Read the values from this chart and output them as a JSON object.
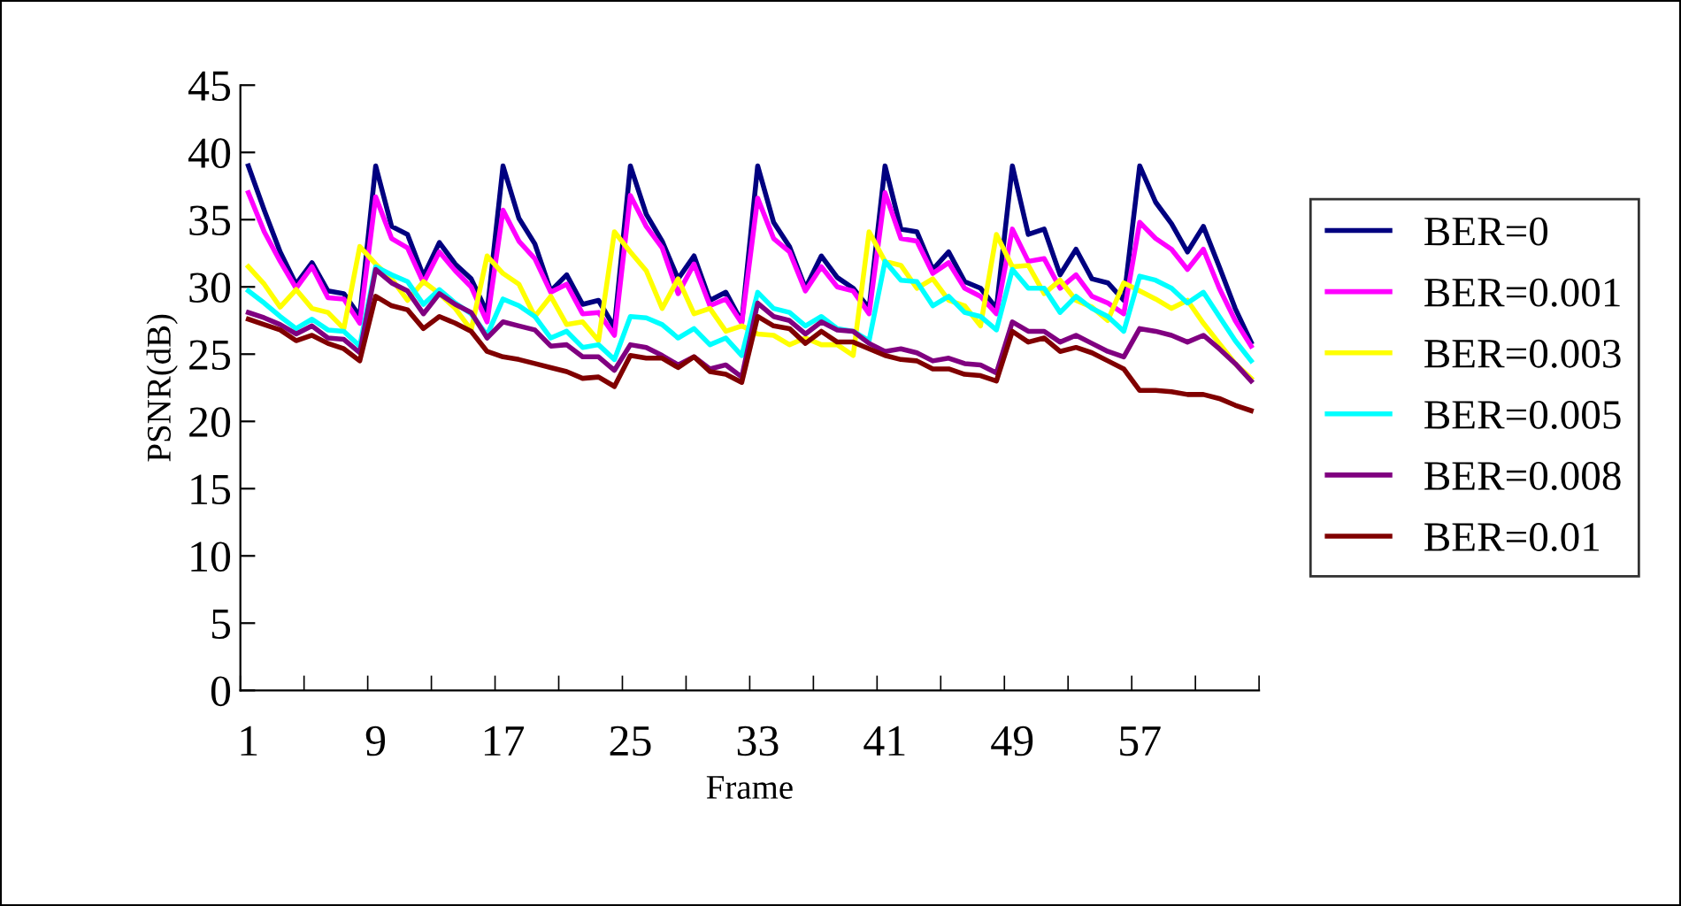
{
  "chart_data": {
    "type": "line",
    "xlabel": "Frame",
    "ylabel": "PSNR(dB)",
    "categories": [
      "1",
      null,
      null,
      null,
      null,
      null,
      null,
      null,
      "9",
      null,
      null,
      null,
      null,
      null,
      null,
      null,
      "17",
      null,
      null,
      null,
      null,
      null,
      null,
      null,
      "25",
      null,
      null,
      null,
      null,
      null,
      null,
      null,
      "33",
      null,
      null,
      null,
      null,
      null,
      null,
      null,
      "41",
      null,
      null,
      null,
      null,
      null,
      null,
      null,
      "49",
      null,
      null,
      null,
      null,
      null,
      null,
      null,
      "57",
      null,
      null,
      null,
      null,
      null,
      null,
      null
    ],
    "ylim": [
      0,
      45
    ],
    "yticks": [
      0,
      5,
      10,
      15,
      20,
      25,
      30,
      35,
      40,
      45
    ],
    "grid": false,
    "legend": "right",
    "marker": "none",
    "line_style": "solid",
    "series": [
      {
        "name": "BER=0",
        "color": "#000080",
        "values": [
          39.0,
          35.7,
          32.6,
          30.2,
          31.8,
          29.7,
          29.5,
          27.8,
          39.0,
          34.5,
          33.9,
          30.8,
          33.3,
          31.7,
          30.6,
          28.1,
          39.0,
          35.1,
          33.2,
          29.7,
          30.9,
          28.7,
          29.0,
          27.0,
          39.0,
          35.4,
          33.4,
          30.6,
          32.3,
          29.0,
          29.6,
          27.4,
          39.0,
          34.8,
          33.0,
          29.9,
          32.3,
          30.7,
          29.9,
          28.4,
          39.0,
          34.3,
          34.1,
          31.3,
          32.6,
          30.4,
          29.9,
          28.4,
          39.0,
          33.9,
          34.3,
          30.9,
          32.8,
          30.6,
          30.3,
          29.0,
          39.0,
          36.3,
          34.7,
          32.6,
          34.5,
          31.5,
          28.4,
          25.9
        ]
      },
      {
        "name": "BER=0.001",
        "color": "#ff00ff",
        "values": [
          37.0,
          34.1,
          31.9,
          29.9,
          31.5,
          29.2,
          29.1,
          27.3,
          36.7,
          33.6,
          32.9,
          30.3,
          32.6,
          31.2,
          30.0,
          27.4,
          35.7,
          33.4,
          32.1,
          29.6,
          30.2,
          28.0,
          28.1,
          26.4,
          36.8,
          34.5,
          32.9,
          29.5,
          31.7,
          28.6,
          29.1,
          27.3,
          36.6,
          33.6,
          32.6,
          29.7,
          31.5,
          30.0,
          29.7,
          28.0,
          37.0,
          33.6,
          33.4,
          31.0,
          31.8,
          29.9,
          29.3,
          28.0,
          34.3,
          31.9,
          32.1,
          29.9,
          30.9,
          29.3,
          28.8,
          28.0,
          34.8,
          33.6,
          32.8,
          31.3,
          32.8,
          29.9,
          27.5,
          25.6
        ]
      },
      {
        "name": "BER=0.003",
        "color": "#ffff00",
        "values": [
          31.5,
          30.2,
          28.5,
          29.8,
          28.4,
          28.1,
          26.9,
          33.0,
          31.7,
          30.6,
          29.0,
          30.4,
          29.5,
          28.4,
          26.8,
          32.3,
          31.0,
          30.2,
          27.8,
          29.3,
          27.2,
          27.4,
          26.0,
          34.1,
          32.6,
          31.2,
          28.4,
          30.6,
          28.0,
          28.4,
          26.7,
          27.1,
          26.5,
          26.4,
          25.7,
          26.2,
          25.7,
          25.7,
          24.9,
          34.1,
          31.9,
          31.6,
          29.9,
          30.6,
          29.0,
          28.6,
          27.1,
          33.9,
          31.5,
          31.6,
          29.5,
          30.5,
          29.0,
          28.5,
          27.5,
          30.3,
          29.7,
          29.1,
          28.4,
          29.0,
          27.3,
          25.8,
          24.3,
          23.2
        ]
      },
      {
        "name": "BER=0.005",
        "color": "#00ffff",
        "values": [
          29.7,
          28.8,
          27.8,
          26.9,
          27.6,
          26.8,
          26.7,
          25.6,
          31.5,
          30.9,
          30.4,
          28.7,
          29.8,
          28.8,
          28.0,
          26.4,
          29.1,
          28.6,
          27.8,
          26.2,
          26.7,
          25.5,
          25.7,
          24.6,
          27.8,
          27.7,
          27.2,
          26.2,
          26.9,
          25.7,
          26.2,
          24.9,
          29.6,
          28.4,
          28.1,
          27.1,
          27.8,
          26.9,
          26.7,
          26.0,
          31.9,
          30.5,
          30.4,
          28.6,
          29.3,
          28.1,
          27.8,
          26.8,
          31.3,
          29.9,
          29.9,
          28.1,
          29.3,
          28.4,
          27.8,
          26.7,
          30.8,
          30.5,
          29.9,
          28.8,
          29.6,
          27.8,
          26.0,
          24.5
        ]
      },
      {
        "name": "BER=0.008",
        "color": "#800080",
        "values": [
          28.1,
          27.7,
          27.2,
          26.5,
          27.1,
          26.2,
          26.1,
          25.1,
          31.3,
          30.3,
          29.7,
          28.0,
          29.5,
          28.7,
          28.1,
          26.2,
          27.4,
          27.1,
          26.8,
          25.6,
          25.7,
          24.8,
          24.8,
          23.8,
          25.7,
          25.5,
          24.9,
          24.2,
          24.8,
          23.9,
          24.2,
          23.3,
          28.8,
          27.8,
          27.5,
          26.5,
          27.4,
          26.8,
          26.7,
          25.8,
          25.2,
          25.4,
          25.1,
          24.5,
          24.7,
          24.3,
          24.2,
          23.6,
          27.4,
          26.7,
          26.7,
          25.9,
          26.4,
          25.8,
          25.2,
          24.8,
          26.9,
          26.7,
          26.4,
          25.9,
          26.4,
          25.4,
          24.3,
          23.0
        ]
      },
      {
        "name": "BER=0.01",
        "color": "#800000",
        "values": [
          27.6,
          27.2,
          26.8,
          26.0,
          26.4,
          25.8,
          25.4,
          24.5,
          29.3,
          28.6,
          28.3,
          26.9,
          27.8,
          27.3,
          26.7,
          25.2,
          24.8,
          24.6,
          24.3,
          24.0,
          23.7,
          23.2,
          23.3,
          22.6,
          24.9,
          24.7,
          24.7,
          24.0,
          24.8,
          23.7,
          23.5,
          22.9,
          27.8,
          27.1,
          26.9,
          25.8,
          26.7,
          25.9,
          25.9,
          25.4,
          24.9,
          24.6,
          24.5,
          23.9,
          23.9,
          23.5,
          23.4,
          23.0,
          26.7,
          25.9,
          26.2,
          25.2,
          25.5,
          25.1,
          24.5,
          23.9,
          22.3,
          22.3,
          22.2,
          22.0,
          22.0,
          21.7,
          21.2,
          20.8
        ]
      }
    ]
  }
}
